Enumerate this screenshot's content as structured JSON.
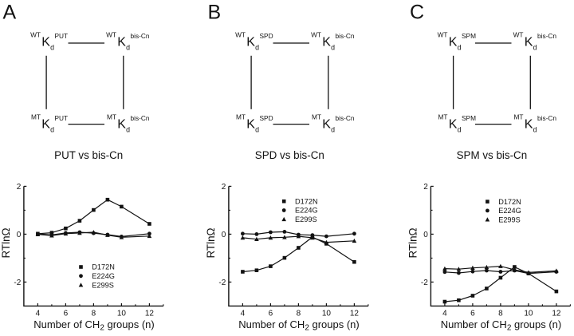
{
  "figure": {
    "background": "#ffffff",
    "ink": "#121212"
  },
  "panels": [
    {
      "letter": "A",
      "caption": "PUT vs bis-Cn",
      "cycle": {
        "top_left": {
          "prefix": "WT",
          "base": "K",
          "sub": "d",
          "sup": "PUT"
        },
        "top_right": {
          "prefix": "WT",
          "base": "K",
          "sub": "d",
          "sup": "bis-Cn"
        },
        "bottom_left": {
          "prefix": "MT",
          "base": "K",
          "sub": "d",
          "sup": "PUT"
        },
        "bottom_right": {
          "prefix": "MT",
          "base": "K",
          "sub": "d",
          "sup": "bis-Cn"
        }
      }
    },
    {
      "letter": "B",
      "caption": "SPD vs bis-Cn",
      "cycle": {
        "top_left": {
          "prefix": "WT",
          "base": "K",
          "sub": "d",
          "sup": "SPD"
        },
        "top_right": {
          "prefix": "WT",
          "base": "K",
          "sub": "d",
          "sup": "bis-Cn"
        },
        "bottom_left": {
          "prefix": "MT",
          "base": "K",
          "sub": "d",
          "sup": "SPD"
        },
        "bottom_right": {
          "prefix": "MT",
          "base": "K",
          "sub": "d",
          "sup": "bis-Cn"
        }
      }
    },
    {
      "letter": "C",
      "caption": "SPM vs bis-Cn",
      "cycle": {
        "top_left": {
          "prefix": "WT",
          "base": "K",
          "sub": "d",
          "sup": "SPM"
        },
        "top_right": {
          "prefix": "WT",
          "base": "K",
          "sub": "d",
          "sup": "bis-Cn"
        },
        "bottom_left": {
          "prefix": "MT",
          "base": "K",
          "sub": "d",
          "sup": "SPM"
        },
        "bottom_right": {
          "prefix": "MT",
          "base": "K",
          "sub": "d",
          "sup": "bis-Cn"
        }
      }
    }
  ],
  "chart_data": [
    {
      "type": "line",
      "title": "PUT vs bis-Cn",
      "xlabel": "Number of CH2 groups (n)",
      "xlabel_parts": {
        "pre": "Number of CH",
        "sub": "2",
        "post": " groups (n)"
      },
      "ylabel": "RTlnΩ",
      "x": [
        4,
        5,
        6,
        7,
        8,
        9,
        10,
        12
      ],
      "xlim": [
        3,
        13
      ],
      "ylim": [
        -3,
        2
      ],
      "xticks": [
        4,
        6,
        8,
        10,
        12
      ],
      "xminorticks": [
        5,
        7,
        9,
        11,
        13
      ],
      "yticks": [
        2,
        0,
        -2
      ],
      "yminorticks": [
        1,
        -1
      ],
      "grid": false,
      "legend_position": "lower center",
      "series": [
        {
          "name": "D172N",
          "marker": "square",
          "values": [
            0.02,
            0.06,
            0.24,
            0.56,
            1.01,
            1.44,
            1.15,
            0.43
          ]
        },
        {
          "name": "E224G",
          "marker": "circle",
          "values": [
            0.01,
            -0.03,
            0.05,
            0.08,
            0.04,
            -0.02,
            -0.1,
            0.02
          ]
        },
        {
          "name": "E299S",
          "marker": "triangle",
          "values": [
            -0.01,
            -0.06,
            0.02,
            0.05,
            0.08,
            -0.04,
            -0.13,
            -0.08
          ]
        }
      ]
    },
    {
      "type": "line",
      "title": "SPD vs bis-Cn",
      "xlabel": "Number of CH2 groups (n)",
      "xlabel_parts": {
        "pre": "Number of CH",
        "sub": "2",
        "post": " groups (n)"
      },
      "ylabel": "RTlnΩ",
      "x": [
        4,
        5,
        6,
        7,
        8,
        9,
        10,
        12
      ],
      "xlim": [
        3,
        13
      ],
      "ylim": [
        -3,
        2
      ],
      "xticks": [
        4,
        6,
        8,
        10,
        12
      ],
      "xminorticks": [
        5,
        7,
        9,
        11,
        13
      ],
      "yticks": [
        2,
        0,
        -2
      ],
      "yminorticks": [
        1,
        -1
      ],
      "grid": false,
      "legend_position": "upper center",
      "series": [
        {
          "name": "D172N",
          "marker": "square",
          "values": [
            -1.57,
            -1.51,
            -1.34,
            -0.99,
            -0.57,
            -0.12,
            -0.4,
            -1.16
          ]
        },
        {
          "name": "E224G",
          "marker": "circle",
          "values": [
            0.02,
            0.0,
            0.08,
            0.1,
            -0.02,
            -0.04,
            -0.09,
            0.02
          ]
        },
        {
          "name": "E299S",
          "marker": "triangle",
          "values": [
            -0.15,
            -0.21,
            -0.15,
            -0.13,
            -0.09,
            -0.15,
            -0.34,
            -0.28
          ]
        }
      ]
    },
    {
      "type": "line",
      "title": "SPM vs bis-Cn",
      "xlabel": "Number of CH2 groups (n)",
      "xlabel_parts": {
        "pre": "Number of CH",
        "sub": "2",
        "post": " groups (n)"
      },
      "ylabel": "RTlnΩ",
      "x": [
        4,
        5,
        6,
        7,
        8,
        9,
        10,
        12
      ],
      "xlim": [
        3,
        13
      ],
      "ylim": [
        -3,
        2
      ],
      "xticks": [
        4,
        6,
        8,
        10,
        12
      ],
      "xminorticks": [
        5,
        7,
        9,
        11,
        13
      ],
      "yticks": [
        2,
        0,
        -2
      ],
      "yminorticks": [
        1,
        -1
      ],
      "grid": false,
      "legend_position": "upper center",
      "series": [
        {
          "name": "D172N",
          "marker": "square",
          "values": [
            -2.82,
            -2.76,
            -2.57,
            -2.27,
            -1.82,
            -1.37,
            -1.64,
            -2.39
          ]
        },
        {
          "name": "E224G",
          "marker": "circle",
          "values": [
            -1.58,
            -1.62,
            -1.56,
            -1.52,
            -1.57,
            -1.52,
            -1.64,
            -1.57
          ]
        },
        {
          "name": "E299S",
          "marker": "triangle",
          "values": [
            -1.44,
            -1.46,
            -1.41,
            -1.38,
            -1.34,
            -1.49,
            -1.6,
            -1.53
          ]
        }
      ]
    }
  ]
}
